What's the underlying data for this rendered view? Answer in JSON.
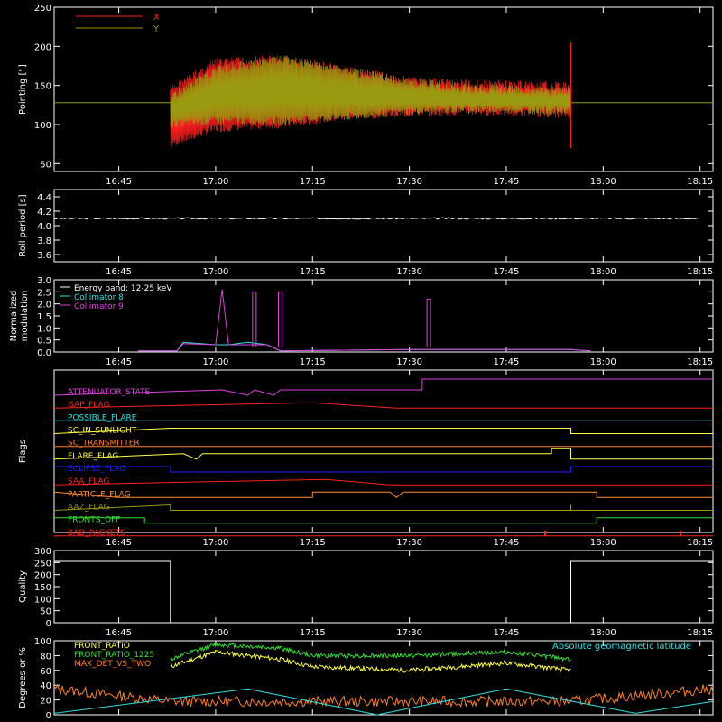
{
  "x_tick_labels": [
    "16:45",
    "17:00",
    "17:15",
    "17:30",
    "17:45",
    "18:00",
    "18:15"
  ],
  "colors": {
    "axis": "#ffffff",
    "red": "#ff2020",
    "olive": "#9a9a10",
    "white": "#ffffff",
    "cyan": "#30e0e0",
    "magenta": "#e040e0",
    "orange": "#ff8020",
    "yellow": "#ffff40",
    "green": "#30e030",
    "blue": "#2020ff",
    "lightorange": "#ff9030"
  },
  "chart_data": [
    {
      "id": "pointing",
      "type": "line",
      "ylabel": "Pointing [\"]",
      "ylim": [
        40,
        250
      ],
      "yticks": [
        50,
        100,
        150,
        200,
        250
      ],
      "xlim": [
        "16:35",
        "18:17"
      ],
      "legend": {
        "placement": "top-left",
        "entries": [
          {
            "name": "X",
            "color": "#ff2020"
          },
          {
            "name": "Y",
            "color": "#9a9a10"
          }
        ]
      },
      "series": [
        {
          "name": "X",
          "x": [
            "16:53",
            "17:00",
            "17:10",
            "17:20",
            "17:30",
            "17:40",
            "17:55"
          ],
          "y_max": [
            150,
            185,
            190,
            175,
            162,
            158,
            155
          ],
          "y_min": [
            70,
            90,
            95,
            105,
            110,
            112,
            108
          ]
        },
        {
          "name": "Y",
          "x": [
            "16:53",
            "17:00",
            "17:10",
            "17:20",
            "17:30",
            "17:40",
            "17:55"
          ],
          "y_max": [
            140,
            175,
            190,
            175,
            160,
            152,
            148
          ],
          "y_min": [
            95,
            100,
            100,
            105,
            112,
            115,
            112
          ]
        }
      ],
      "baseline": 128
    },
    {
      "id": "roll",
      "type": "line",
      "ylabel": "Roll period [s]",
      "ylim": [
        3.5,
        4.5
      ],
      "yticks": [
        3.6,
        3.8,
        4.0,
        4.2,
        4.4
      ],
      "xlim": [
        "16:35",
        "18:17"
      ],
      "series": [
        {
          "name": "",
          "x": [
            "16:35",
            "18:15"
          ],
          "y": [
            4.1,
            4.1
          ]
        }
      ]
    },
    {
      "id": "modulation",
      "type": "line",
      "ylabel": "Normalized modulation",
      "ylim": [
        0,
        3.0
      ],
      "yticks": [
        0.0,
        0.5,
        1.0,
        1.5,
        2.0,
        2.5,
        3.0
      ],
      "xlim": [
        "16:35",
        "18:17"
      ],
      "legend": {
        "placement": "top-left",
        "entries": [
          {
            "name": "Energy band: 12-25 keV",
            "color": "#ffffff"
          },
          {
            "name": "Collimator 8",
            "color": "#30e0e0"
          },
          {
            "name": "Collimator 9",
            "color": "#e040e0"
          }
        ]
      },
      "series": [
        {
          "name": "Collimator 8",
          "x": [
            "16:48",
            "16:54",
            "16:55",
            "17:00",
            "17:02",
            "17:05",
            "17:08",
            "17:10",
            "17:30",
            "17:55",
            "17:58"
          ],
          "y": [
            0.05,
            0.05,
            0.4,
            0.3,
            0.3,
            0.4,
            0.3,
            0.05,
            0.1,
            0.1,
            0.05
          ]
        },
        {
          "name": "Collimator 9",
          "x": [
            "16:48",
            "16:54",
            "16:55",
            "17:00",
            "17:01",
            "17:02",
            "17:05",
            "17:08",
            "17:10",
            "17:30",
            "17:55",
            "17:58"
          ],
          "y": [
            0.05,
            0.05,
            0.35,
            0.3,
            2.6,
            0.3,
            0.3,
            0.3,
            0.05,
            0.1,
            0.1,
            0.05
          ]
        }
      ]
    },
    {
      "id": "flags",
      "type": "line",
      "ylabel": "Flags",
      "xlim": [
        "16:35",
        "18:17"
      ],
      "flags": [
        {
          "name": "ATTENUATOR_STATE",
          "color": "#e040e0"
        },
        {
          "name": "GAP_FLAG",
          "color": "#ff2020"
        },
        {
          "name": "POSSIBLE_FLARE",
          "color": "#30e0e0"
        },
        {
          "name": "SC_IN_SUNLIGHT",
          "color": "#ffff40"
        },
        {
          "name": "SC_TRANSMITTER",
          "color": "#ff8020"
        },
        {
          "name": "FLARE_FLAG",
          "color": "#ffff40"
        },
        {
          "name": "ECLIPSE_FLAG",
          "color": "#2020ff"
        },
        {
          "name": "SAA_FLAG",
          "color": "#ff2020"
        },
        {
          "name": "PARTICLE_FLAG",
          "color": "#ff9030"
        },
        {
          "name": "AAZ_FLAG",
          "color": "#9a9a10"
        },
        {
          "name": "FRONTS_OFF",
          "color": "#30e030"
        },
        {
          "name": "BAD_PACKETS",
          "color": "#ff2020"
        }
      ]
    },
    {
      "id": "quality",
      "type": "line",
      "ylabel": "Quality",
      "ylim": [
        0,
        300
      ],
      "yticks": [
        0,
        50,
        100,
        150,
        200,
        250,
        300
      ],
      "xlim": [
        "16:35",
        "18:17"
      ],
      "series": [
        {
          "name": "",
          "x": [
            "16:35",
            "16:53",
            "16:53",
            "17:55",
            "17:55",
            "18:17"
          ],
          "y": [
            255,
            255,
            0,
            0,
            255,
            255
          ]
        }
      ]
    },
    {
      "id": "degrees",
      "type": "line",
      "ylabel": "Degrees or %",
      "ylim": [
        0,
        100
      ],
      "yticks": [
        0,
        20,
        40,
        60,
        80,
        100
      ],
      "xlim": [
        "16:35",
        "18:17"
      ],
      "legend": {
        "placement": "top-left",
        "entries": [
          {
            "name": "FRONT_RATIO",
            "color": "#ffff40"
          },
          {
            "name": "FRONT_RATIO_1225",
            "color": "#30e030"
          },
          {
            "name": "MAX_DET_VS_TWO",
            "color": "#ff8020"
          }
        ]
      },
      "annotation": {
        "text": "Absolute geomagnetic latitude",
        "color": "#30e0e0"
      },
      "series": [
        {
          "name": "FRONT_RATIO",
          "x": [
            "16:53",
            "17:00",
            "17:10",
            "17:15",
            "17:30",
            "17:45",
            "17:55"
          ],
          "y": [
            65,
            85,
            75,
            65,
            60,
            70,
            60
          ]
        },
        {
          "name": "FRONT_RATIO_1225",
          "x": [
            "16:53",
            "17:00",
            "17:10",
            "17:15",
            "17:30",
            "17:45",
            "17:55"
          ],
          "y": [
            75,
            95,
            90,
            80,
            80,
            85,
            75
          ]
        },
        {
          "name": "MAX_DET_VS_TWO",
          "x": [
            "16:35",
            "16:53",
            "17:15",
            "17:30",
            "17:55",
            "18:17"
          ],
          "y": [
            35,
            18,
            18,
            18,
            18,
            35
          ]
        },
        {
          "name": "Absolute geomagnetic latitude",
          "x": [
            "16:35",
            "17:05",
            "17:25",
            "17:45",
            "18:05",
            "18:17"
          ],
          "y": [
            2,
            35,
            0,
            35,
            2,
            18
          ]
        }
      ]
    }
  ]
}
